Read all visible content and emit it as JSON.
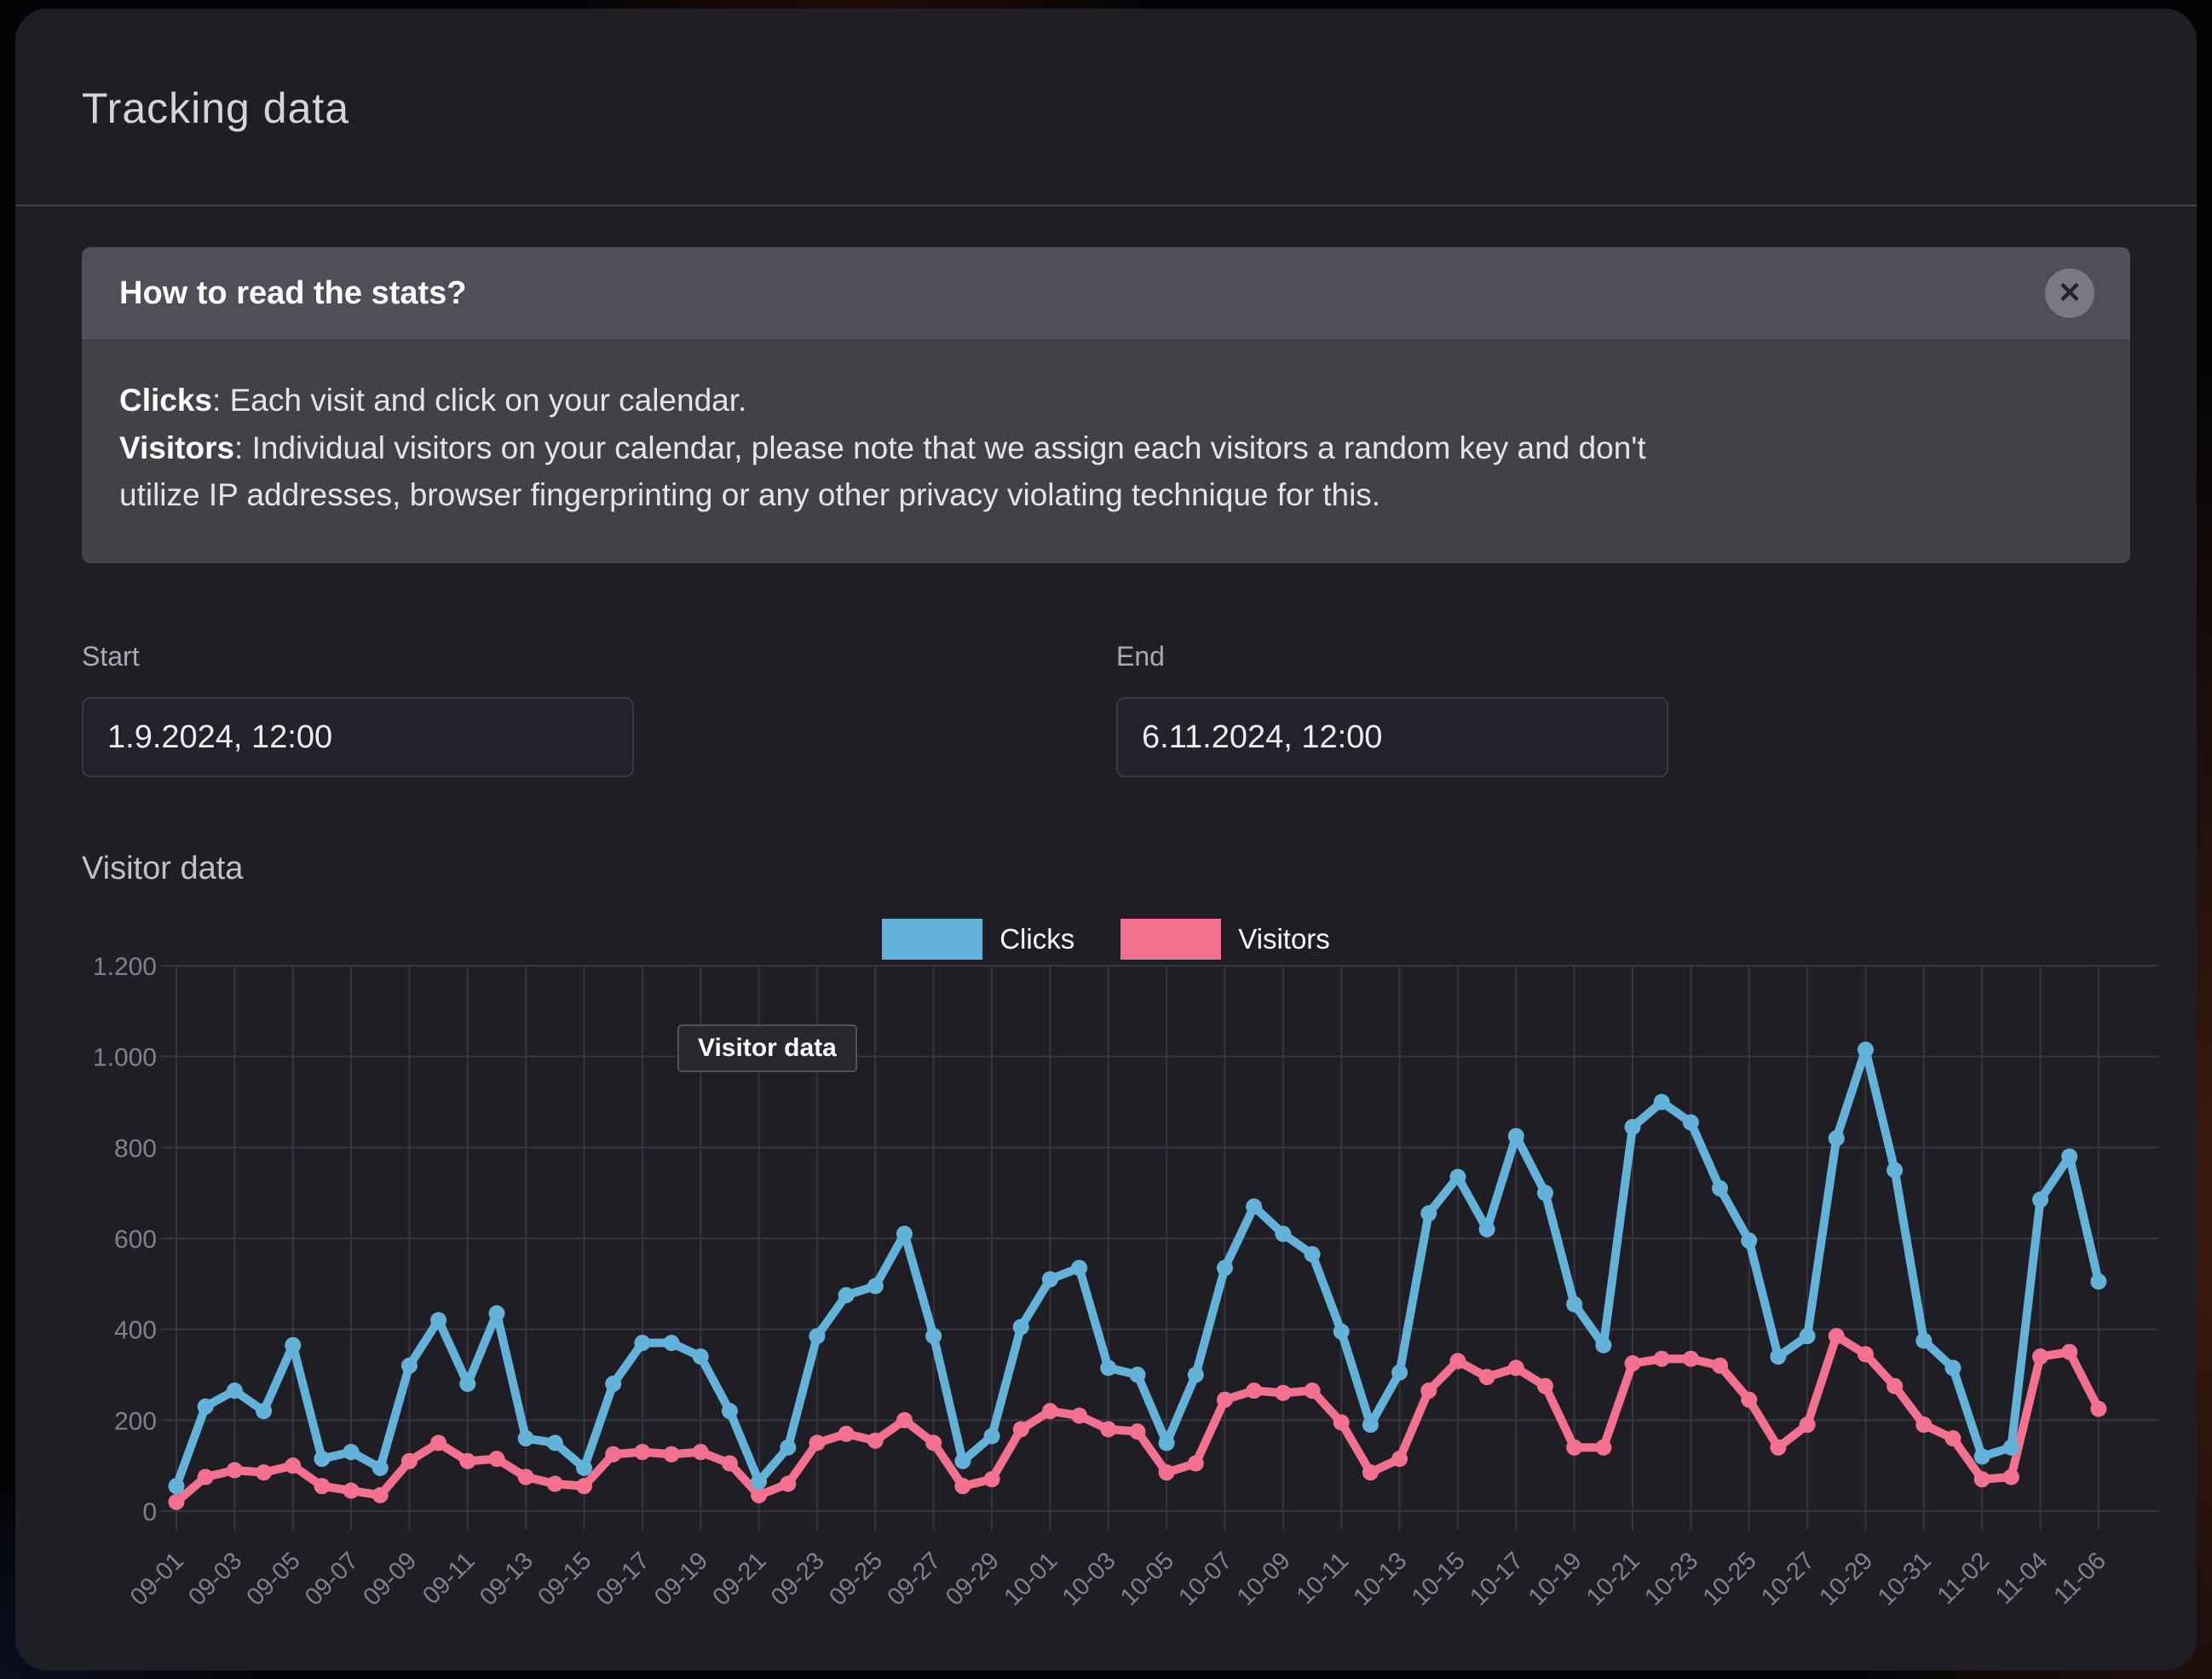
{
  "page": {
    "title": "Tracking data"
  },
  "banner": {
    "title": "How to read the stats?",
    "close_icon": "✕",
    "line1_term": "Clicks",
    "line1_rest": ": Each visit and click on your calendar.",
    "line2_term": "Visitors",
    "line2_rest": ": Individual visitors on your calendar, please note that we assign each visitors a random key and don't",
    "line3": "utilize IP addresses, browser fingerprinting or any other privacy violating technique for this."
  },
  "filters": {
    "start_label": "Start",
    "start_value": "1.9.2024, 12:00",
    "end_label": "End",
    "end_value": "6.11.2024, 12:00"
  },
  "section_heading": "Visitor data",
  "tooltip": {
    "text": "Visitor data"
  },
  "chart_data": {
    "type": "line",
    "title": "Visitor data",
    "legend_position": "top",
    "grid": true,
    "ylim": [
      0,
      1200
    ],
    "y_ticks": [
      0,
      200,
      400,
      600,
      800,
      1000,
      1200
    ],
    "y_tick_labels": [
      "0",
      "200",
      "400",
      "600",
      "800",
      "1.000",
      "1.200"
    ],
    "x_tick_every": 2,
    "categories": [
      "09-01",
      "09-02",
      "09-03",
      "09-04",
      "09-05",
      "09-06",
      "09-07",
      "09-08",
      "09-09",
      "09-10",
      "09-11",
      "09-12",
      "09-13",
      "09-14",
      "09-15",
      "09-16",
      "09-17",
      "09-18",
      "09-19",
      "09-20",
      "09-21",
      "09-22",
      "09-23",
      "09-24",
      "09-25",
      "09-26",
      "09-27",
      "09-28",
      "09-29",
      "09-30",
      "10-01",
      "10-02",
      "10-03",
      "10-04",
      "10-05",
      "10-06",
      "10-07",
      "10-08",
      "10-09",
      "10-10",
      "10-11",
      "10-12",
      "10-13",
      "10-14",
      "10-15",
      "10-16",
      "10-17",
      "10-18",
      "10-19",
      "10-20",
      "10-21",
      "10-22",
      "10-23",
      "10-24",
      "10-25",
      "10-26",
      "10-27",
      "10-28",
      "10-29",
      "10-30",
      "10-31",
      "11-01",
      "11-02",
      "11-03",
      "11-04",
      "11-05",
      "11-06"
    ],
    "series": [
      {
        "name": "Clicks",
        "color": "#62b2d9",
        "values": [
          55,
          230,
          265,
          220,
          365,
          115,
          130,
          95,
          320,
          420,
          280,
          435,
          160,
          150,
          95,
          280,
          370,
          370,
          340,
          220,
          65,
          140,
          385,
          475,
          495,
          610,
          385,
          110,
          165,
          405,
          510,
          535,
          315,
          300,
          150,
          300,
          535,
          670,
          610,
          565,
          395,
          190,
          305,
          655,
          735,
          620,
          825,
          700,
          455,
          365,
          845,
          900,
          855,
          710,
          595,
          340,
          385,
          820,
          1015,
          750,
          375,
          315,
          120,
          140,
          685,
          780,
          505
        ]
      },
      {
        "name": "Visitors",
        "color": "#f4708f",
        "values": [
          20,
          75,
          90,
          85,
          100,
          55,
          45,
          35,
          110,
          150,
          110,
          115,
          75,
          60,
          55,
          125,
          130,
          125,
          130,
          105,
          35,
          60,
          150,
          170,
          155,
          200,
          150,
          55,
          70,
          180,
          220,
          210,
          180,
          175,
          85,
          105,
          245,
          265,
          260,
          265,
          195,
          85,
          115,
          265,
          330,
          295,
          315,
          275,
          140,
          140,
          325,
          335,
          335,
          320,
          245,
          140,
          190,
          385,
          345,
          275,
          190,
          160,
          70,
          75,
          340,
          350,
          225
        ]
      }
    ],
    "colors": {
      "grid": "#37353d",
      "tick_text": "#82808a"
    }
  }
}
